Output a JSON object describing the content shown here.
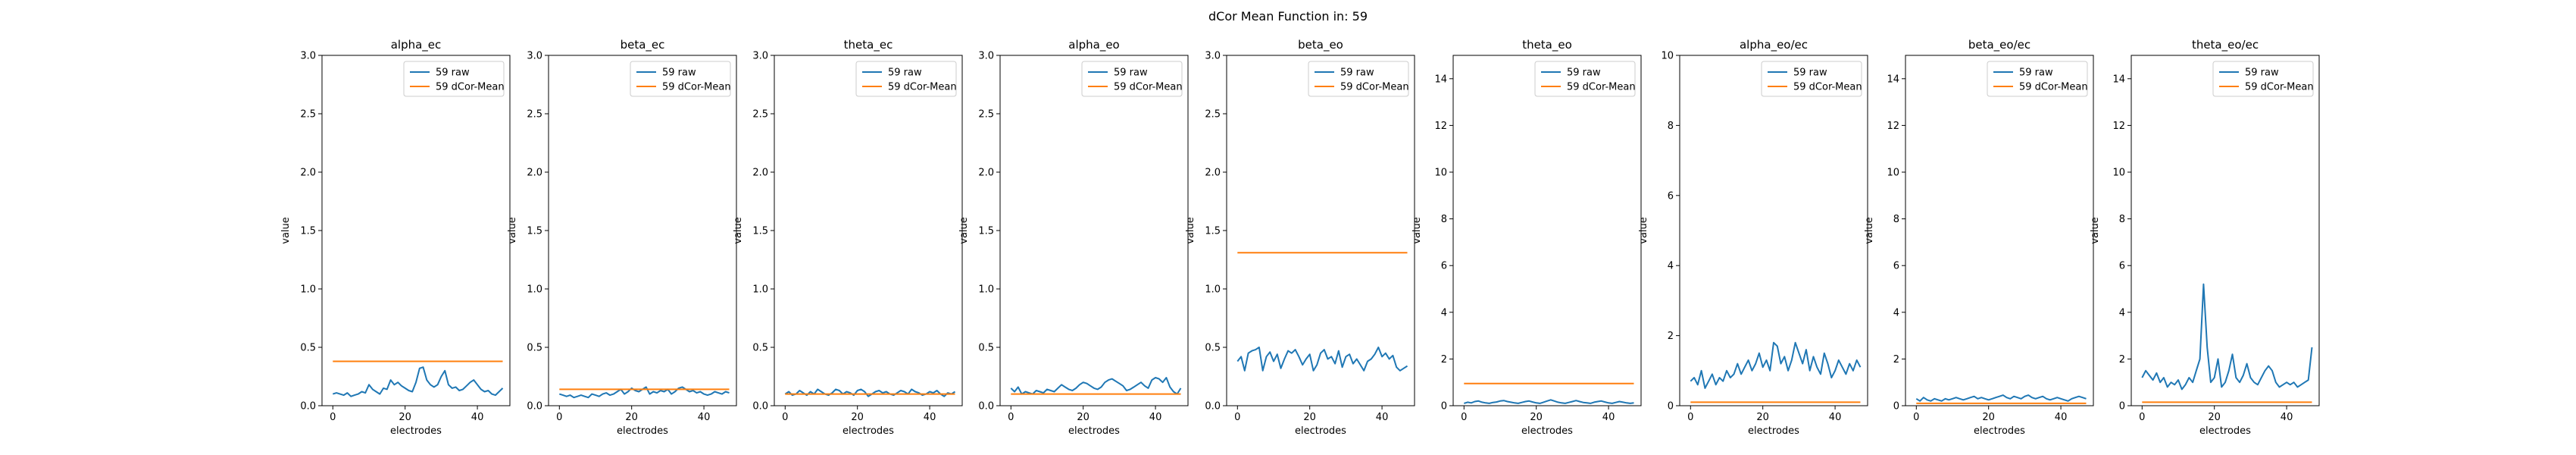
{
  "figure": {
    "suptitle": "dCor Mean Function in: 59"
  },
  "colors": {
    "raw": "#1f77b4",
    "mean": "#ff7f0e",
    "axis": "#000000"
  },
  "chart_data": [
    {
      "type": "line",
      "title": "alpha_ec",
      "xlabel": "electrodes",
      "ylabel": "value",
      "xlim": [
        -3,
        49
      ],
      "ylim": [
        0,
        3.0
      ],
      "xticks": [
        0,
        20,
        40
      ],
      "yticks": [
        0.0,
        0.5,
        1.0,
        1.5,
        2.0,
        2.5,
        3.0
      ],
      "ytick_labels": [
        "0.0",
        "0.5",
        "1.0",
        "1.5",
        "2.0",
        "2.5",
        "3.0"
      ],
      "legend": {
        "placement": "top-right",
        "entries": [
          "59 raw",
          "59 dCor-Mean"
        ]
      },
      "series": [
        {
          "name": "59 raw",
          "values": [
            0.1,
            0.11,
            0.1,
            0.09,
            0.11,
            0.08,
            0.09,
            0.1,
            0.12,
            0.11,
            0.18,
            0.14,
            0.12,
            0.1,
            0.15,
            0.14,
            0.22,
            0.18,
            0.2,
            0.17,
            0.15,
            0.13,
            0.12,
            0.2,
            0.32,
            0.33,
            0.22,
            0.18,
            0.16,
            0.18,
            0.25,
            0.3,
            0.18,
            0.15,
            0.16,
            0.13,
            0.14,
            0.17,
            0.2,
            0.22,
            0.18,
            0.14,
            0.12,
            0.13,
            0.1,
            0.09,
            0.12,
            0.15
          ]
        },
        {
          "name": "59 dCor-Mean",
          "values": [
            0.38,
            0.38
          ]
        }
      ]
    },
    {
      "type": "line",
      "title": "beta_ec",
      "xlabel": "electrodes",
      "ylabel": "value",
      "xlim": [
        -3,
        49
      ],
      "ylim": [
        0,
        3.0
      ],
      "xticks": [
        0,
        20,
        40
      ],
      "yticks": [
        0.0,
        0.5,
        1.0,
        1.5,
        2.0,
        2.5,
        3.0
      ],
      "ytick_labels": [
        "0.0",
        "0.5",
        "1.0",
        "1.5",
        "2.0",
        "2.5",
        "3.0"
      ],
      "legend": {
        "placement": "top-right",
        "entries": [
          "59 raw",
          "59 dCor-Mean"
        ]
      },
      "series": [
        {
          "name": "59 raw",
          "values": [
            0.1,
            0.09,
            0.08,
            0.09,
            0.07,
            0.08,
            0.09,
            0.08,
            0.07,
            0.1,
            0.09,
            0.08,
            0.1,
            0.11,
            0.09,
            0.1,
            0.12,
            0.14,
            0.1,
            0.12,
            0.15,
            0.13,
            0.12,
            0.14,
            0.16,
            0.1,
            0.12,
            0.11,
            0.13,
            0.12,
            0.14,
            0.1,
            0.12,
            0.15,
            0.16,
            0.14,
            0.12,
            0.13,
            0.11,
            0.12,
            0.1,
            0.09,
            0.1,
            0.12,
            0.11,
            0.1,
            0.12,
            0.11
          ]
        },
        {
          "name": "59 dCor-Mean",
          "values": [
            0.14,
            0.14
          ]
        }
      ]
    },
    {
      "type": "line",
      "title": "theta_ec",
      "xlabel": "electrodes",
      "ylabel": "value",
      "xlim": [
        -3,
        49
      ],
      "ylim": [
        0,
        3.0
      ],
      "xticks": [
        0,
        20,
        40
      ],
      "yticks": [
        0.0,
        0.5,
        1.0,
        1.5,
        2.0,
        2.5,
        3.0
      ],
      "ytick_labels": [
        "0.0",
        "0.5",
        "1.0",
        "1.5",
        "2.0",
        "2.5",
        "3.0"
      ],
      "legend": {
        "placement": "top-right",
        "entries": [
          "59 raw",
          "59 dCor-Mean"
        ]
      },
      "series": [
        {
          "name": "59 raw",
          "values": [
            0.1,
            0.12,
            0.09,
            0.1,
            0.13,
            0.11,
            0.09,
            0.12,
            0.1,
            0.14,
            0.12,
            0.1,
            0.09,
            0.11,
            0.14,
            0.13,
            0.1,
            0.12,
            0.11,
            0.09,
            0.13,
            0.14,
            0.12,
            0.08,
            0.1,
            0.12,
            0.13,
            0.11,
            0.12,
            0.1,
            0.09,
            0.11,
            0.13,
            0.12,
            0.1,
            0.14,
            0.12,
            0.11,
            0.09,
            0.1,
            0.12,
            0.11,
            0.13,
            0.1,
            0.08,
            0.11,
            0.1,
            0.12
          ]
        },
        {
          "name": "59 dCor-Mean",
          "values": [
            0.1,
            0.1
          ]
        }
      ]
    },
    {
      "type": "line",
      "title": "alpha_eo",
      "xlabel": "electrodes",
      "ylabel": "value",
      "xlim": [
        -3,
        49
      ],
      "ylim": [
        0,
        3.0
      ],
      "xticks": [
        0,
        20,
        40
      ],
      "yticks": [
        0.0,
        0.5,
        1.0,
        1.5,
        2.0,
        2.5,
        3.0
      ],
      "ytick_labels": [
        "0.0",
        "0.5",
        "1.0",
        "1.5",
        "2.0",
        "2.5",
        "3.0"
      ],
      "legend": {
        "placement": "top-right",
        "entries": [
          "59 raw",
          "59 dCor-Mean"
        ]
      },
      "series": [
        {
          "name": "59 raw",
          "values": [
            0.15,
            0.12,
            0.16,
            0.1,
            0.12,
            0.11,
            0.1,
            0.13,
            0.12,
            0.11,
            0.14,
            0.13,
            0.12,
            0.15,
            0.18,
            0.16,
            0.14,
            0.13,
            0.15,
            0.18,
            0.2,
            0.19,
            0.17,
            0.15,
            0.14,
            0.16,
            0.2,
            0.22,
            0.23,
            0.21,
            0.19,
            0.17,
            0.13,
            0.14,
            0.16,
            0.18,
            0.2,
            0.17,
            0.15,
            0.22,
            0.24,
            0.23,
            0.2,
            0.24,
            0.16,
            0.12,
            0.1,
            0.15
          ]
        },
        {
          "name": "59 dCor-Mean",
          "values": [
            0.1,
            0.1
          ]
        }
      ]
    },
    {
      "type": "line",
      "title": "beta_eo",
      "xlabel": "electrodes",
      "ylabel": "value",
      "xlim": [
        -3,
        49
      ],
      "ylim": [
        0,
        3.0
      ],
      "xticks": [
        0,
        20,
        40
      ],
      "yticks": [
        0.0,
        0.5,
        1.0,
        1.5,
        2.0,
        2.5,
        3.0
      ],
      "ytick_labels": [
        "0.0",
        "0.5",
        "1.0",
        "1.5",
        "2.0",
        "2.5",
        "3.0"
      ],
      "legend": {
        "placement": "top-right",
        "entries": [
          "59 raw",
          "59 dCor-Mean"
        ]
      },
      "series": [
        {
          "name": "59 raw",
          "values": [
            0.38,
            0.42,
            0.3,
            0.45,
            0.47,
            0.48,
            0.5,
            0.3,
            0.42,
            0.46,
            0.38,
            0.44,
            0.32,
            0.4,
            0.47,
            0.45,
            0.48,
            0.42,
            0.35,
            0.4,
            0.44,
            0.3,
            0.35,
            0.45,
            0.48,
            0.4,
            0.42,
            0.36,
            0.47,
            0.33,
            0.42,
            0.44,
            0.36,
            0.4,
            0.35,
            0.3,
            0.38,
            0.4,
            0.44,
            0.5,
            0.42,
            0.45,
            0.4,
            0.43,
            0.33,
            0.3,
            0.32,
            0.34
          ]
        },
        {
          "name": "59 dCor-Mean",
          "values": [
            1.31,
            1.31
          ]
        }
      ]
    },
    {
      "type": "line",
      "title": "theta_eo",
      "xlabel": "electrodes",
      "ylabel": "value",
      "xlim": [
        -3,
        49
      ],
      "ylim": [
        0,
        15
      ],
      "xticks": [
        0,
        20,
        40
      ],
      "yticks": [
        0,
        2,
        4,
        6,
        8,
        10,
        12,
        14
      ],
      "ytick_labels": [
        "0",
        "2",
        "4",
        "6",
        "8",
        "10",
        "12",
        "14"
      ],
      "legend": {
        "placement": "top-right",
        "entries": [
          "59 raw",
          "59 dCor-Mean"
        ]
      },
      "series": [
        {
          "name": "59 raw",
          "values": [
            0.1,
            0.15,
            0.12,
            0.18,
            0.2,
            0.15,
            0.12,
            0.1,
            0.14,
            0.16,
            0.2,
            0.22,
            0.18,
            0.15,
            0.12,
            0.1,
            0.14,
            0.18,
            0.2,
            0.16,
            0.12,
            0.1,
            0.15,
            0.2,
            0.25,
            0.2,
            0.15,
            0.12,
            0.1,
            0.14,
            0.18,
            0.22,
            0.18,
            0.14,
            0.12,
            0.1,
            0.15,
            0.18,
            0.2,
            0.16,
            0.12,
            0.1,
            0.14,
            0.18,
            0.15,
            0.12,
            0.1,
            0.12
          ]
        },
        {
          "name": "59 dCor-Mean",
          "values": [
            0.95,
            0.95
          ]
        }
      ]
    },
    {
      "type": "line",
      "title": "alpha_eo/ec",
      "xlabel": "electrodes",
      "ylabel": "value",
      "xlim": [
        -3,
        49
      ],
      "ylim": [
        0,
        10
      ],
      "xticks": [
        0,
        20,
        40
      ],
      "yticks": [
        0,
        2,
        4,
        6,
        8,
        10
      ],
      "ytick_labels": [
        "0",
        "2",
        "4",
        "6",
        "8",
        "10"
      ],
      "legend": {
        "placement": "top-right",
        "entries": [
          "59 raw",
          "59 dCor-Mean"
        ]
      },
      "series": [
        {
          "name": "59 raw",
          "values": [
            0.7,
            0.8,
            0.6,
            1.0,
            0.5,
            0.7,
            0.9,
            0.6,
            0.8,
            0.7,
            1.0,
            0.8,
            0.9,
            1.2,
            0.9,
            1.1,
            1.3,
            1.0,
            1.2,
            1.5,
            1.1,
            1.3,
            1.0,
            1.8,
            1.7,
            1.2,
            1.4,
            1.0,
            1.3,
            1.8,
            1.5,
            1.2,
            1.6,
            1.0,
            1.4,
            1.1,
            0.9,
            1.5,
            1.2,
            0.8,
            1.0,
            1.3,
            1.1,
            0.9,
            1.2,
            1.0,
            1.3,
            1.1
          ]
        },
        {
          "name": "59 dCor-Mean",
          "values": [
            0.1,
            0.1
          ]
        }
      ]
    },
    {
      "type": "line",
      "title": "beta_eo/ec",
      "xlabel": "electrodes",
      "ylabel": "value",
      "xlim": [
        -3,
        49
      ],
      "ylim": [
        0,
        15
      ],
      "xticks": [
        0,
        20,
        40
      ],
      "yticks": [
        0,
        2,
        4,
        6,
        8,
        10,
        12,
        14
      ],
      "ytick_labels": [
        "0",
        "2",
        "4",
        "6",
        "8",
        "10",
        "12",
        "14"
      ],
      "legend": {
        "placement": "top-right",
        "entries": [
          "59 raw",
          "59 dCor-Mean"
        ]
      },
      "series": [
        {
          "name": "59 raw",
          "values": [
            0.3,
            0.2,
            0.35,
            0.25,
            0.2,
            0.3,
            0.25,
            0.2,
            0.3,
            0.25,
            0.3,
            0.35,
            0.3,
            0.25,
            0.3,
            0.35,
            0.4,
            0.3,
            0.35,
            0.3,
            0.25,
            0.3,
            0.35,
            0.4,
            0.45,
            0.35,
            0.3,
            0.4,
            0.35,
            0.3,
            0.4,
            0.45,
            0.35,
            0.3,
            0.35,
            0.4,
            0.3,
            0.25,
            0.3,
            0.35,
            0.3,
            0.25,
            0.2,
            0.3,
            0.35,
            0.4,
            0.35,
            0.3
          ]
        },
        {
          "name": "59 dCor-Mean",
          "values": [
            0.1,
            0.1
          ]
        }
      ]
    },
    {
      "type": "line",
      "title": "theta_eo/ec",
      "xlabel": "electrodes",
      "ylabel": "value",
      "xlim": [
        -3,
        49
      ],
      "ylim": [
        0,
        15
      ],
      "xticks": [
        0,
        20,
        40
      ],
      "yticks": [
        0,
        2,
        4,
        6,
        8,
        10,
        12,
        14
      ],
      "ytick_labels": [
        "0",
        "2",
        "4",
        "6",
        "8",
        "10",
        "12",
        "14"
      ],
      "legend": {
        "placement": "top-right",
        "entries": [
          "59 raw",
          "59 dCor-Mean"
        ]
      },
      "series": [
        {
          "name": "59 raw",
          "values": [
            1.2,
            1.5,
            1.3,
            1.1,
            1.4,
            1.0,
            1.2,
            0.8,
            1.0,
            0.9,
            1.1,
            0.7,
            0.9,
            1.2,
            1.0,
            1.5,
            2.0,
            5.2,
            2.5,
            1.0,
            1.2,
            2.0,
            0.8,
            1.0,
            1.5,
            2.2,
            1.2,
            1.0,
            1.3,
            1.8,
            1.2,
            1.0,
            0.9,
            1.2,
            1.5,
            1.7,
            1.5,
            1.0,
            0.8,
            0.9,
            1.0,
            0.9,
            1.0,
            0.8,
            0.9,
            1.0,
            1.1,
            2.5
          ]
        },
        {
          "name": "59 dCor-Mean",
          "values": [
            0.15,
            0.15
          ]
        }
      ]
    }
  ]
}
